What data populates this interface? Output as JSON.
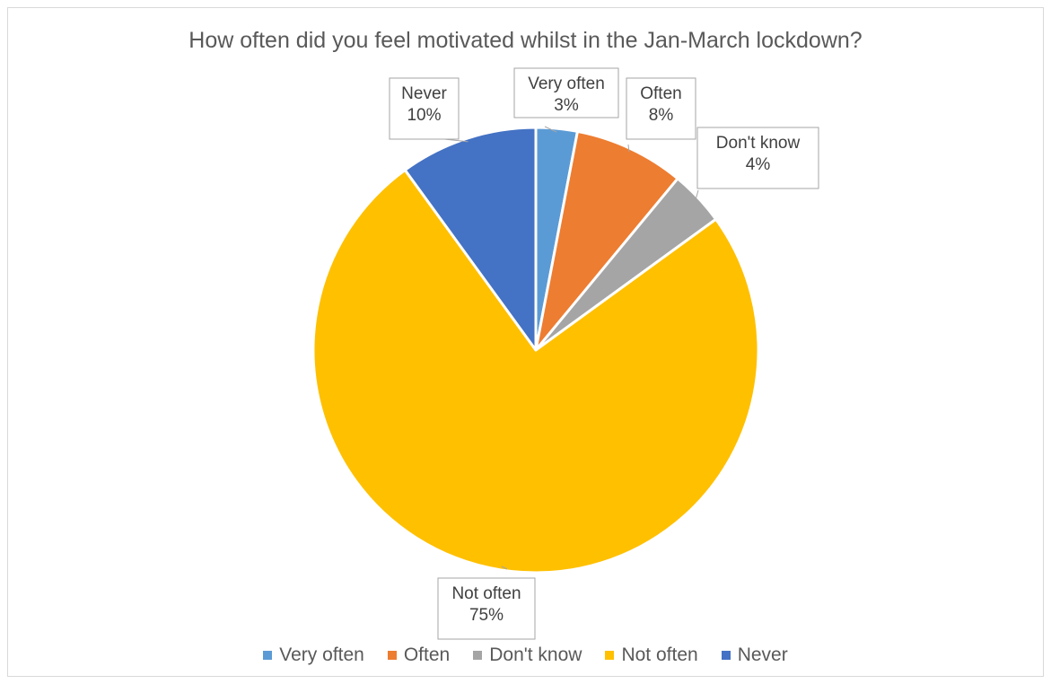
{
  "chart_data": {
    "type": "pie",
    "title": "How often did you feel motivated whilst in the Jan-March lockdown?",
    "categories": [
      "Very often",
      "Often",
      "Don't know",
      "Not often",
      "Never"
    ],
    "values": [
      3,
      8,
      4,
      75,
      10
    ],
    "value_labels": [
      "3%",
      "8%",
      "4%",
      "75%",
      "10%"
    ],
    "colors": [
      "#5b9bd5",
      "#ed7d31",
      "#a5a5a5",
      "#ffc000",
      "#4472c4"
    ],
    "legend_position": "bottom",
    "data_labels": "callout"
  }
}
